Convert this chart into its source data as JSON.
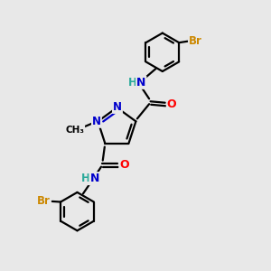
{
  "bg_color": "#e8e8e8",
  "atom_colors": {
    "N": "#0000cc",
    "O": "#ff0000",
    "Br": "#cc8800",
    "C": "#000000",
    "H": "#2aaa9a"
  },
  "bond_color": "#000000",
  "bond_width": 1.6,
  "fig_size": [
    3.0,
    3.0
  ],
  "dpi": 100,
  "xlim": [
    0,
    10
  ],
  "ylim": [
    0,
    10
  ]
}
